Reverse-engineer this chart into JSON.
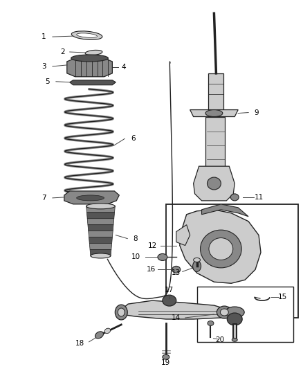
{
  "background_color": "#ffffff",
  "line_color": "#444444",
  "dark_color": "#222222",
  "gray_light": "#cccccc",
  "gray_mid": "#888888",
  "gray_dark": "#555555",
  "fig_w": 4.38,
  "fig_h": 5.33,
  "dpi": 100
}
